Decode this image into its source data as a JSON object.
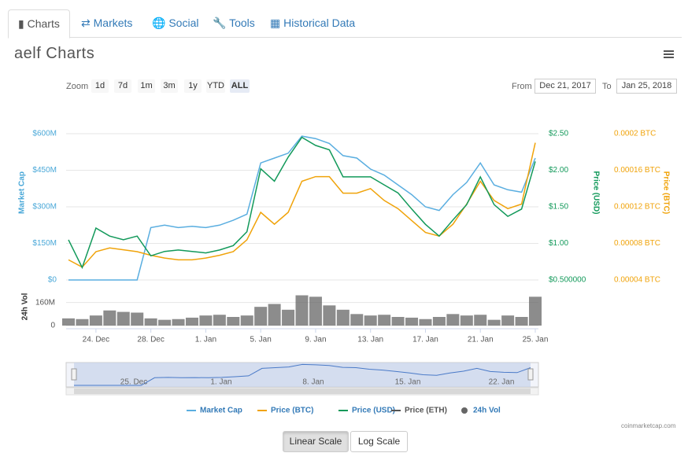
{
  "tabs": [
    "Charts",
    "Markets",
    "Social",
    "Tools",
    "Historical Data"
  ],
  "title": "aelf Charts",
  "range_selector": {
    "zoom_label": "Zoom",
    "buttons": [
      "1d",
      "7d",
      "1m",
      "3m",
      "1y",
      "YTD",
      "ALL"
    ],
    "active": "ALL",
    "from_label": "From",
    "from": "Dec 21, 2017",
    "to_label": "To",
    "to": "Jan 25, 2018"
  },
  "chart_data": {
    "type": "line",
    "categories": [
      null,
      null,
      "24. Dec",
      null,
      null,
      null,
      "28. Dec",
      null,
      null,
      null,
      "1. Jan",
      null,
      null,
      null,
      "5. Jan",
      null,
      null,
      null,
      "9. Jan",
      null,
      null,
      null,
      "13. Jan",
      null,
      null,
      null,
      "17. Jan",
      null,
      null,
      null,
      "21. Jan",
      null,
      null,
      null,
      "25. Jan"
    ],
    "series": [
      {
        "name": "Market Cap",
        "color": "#5aaee0",
        "axis": "y",
        "values": [
          0,
          0,
          0,
          0,
          0,
          0,
          215,
          225,
          215,
          220,
          215,
          225,
          245,
          270,
          480,
          500,
          520,
          590,
          580,
          560,
          510,
          500,
          455,
          430,
          390,
          350,
          300,
          285,
          350,
          400,
          480,
          390,
          370,
          360,
          500
        ]
      },
      {
        "name": "Price (BTC)",
        "color": "#f0a30a",
        "axis": "y3",
        "values": [
          6.2e-05,
          5.4e-05,
          7.1e-05,
          7.5e-05,
          7.3e-05,
          7.1e-05,
          6.7e-05,
          6.4e-05,
          6.2e-05,
          6.2e-05,
          6.4e-05,
          6.7e-05,
          7.1e-05,
          8.4e-05,
          0.000114,
          0.000101,
          0.000114,
          0.000148,
          0.000153,
          0.000153,
          0.000135,
          0.000135,
          0.00014,
          0.000127,
          0.000118,
          0.000105,
          9.2e-05,
          8.8e-05,
          0.000101,
          0.000123,
          0.000148,
          0.000127,
          0.000118,
          0.000123,
          0.00019
        ]
      },
      {
        "name": "Price (USD)",
        "color": "#12995a",
        "axis": "y2",
        "values": [
          1.05,
          0.67,
          1.21,
          1.1,
          1.05,
          1.1,
          0.83,
          0.89,
          0.91,
          0.89,
          0.87,
          0.91,
          0.97,
          1.16,
          2.02,
          1.85,
          2.18,
          2.45,
          2.34,
          2.28,
          1.91,
          1.91,
          1.91,
          1.8,
          1.69,
          1.47,
          1.26,
          1.1,
          1.32,
          1.53,
          1.91,
          1.53,
          1.37,
          1.47,
          2.12
        ]
      },
      {
        "name": "Price (ETH)",
        "color": "#555555",
        "hidden": true
      },
      {
        "name": "24h Vol",
        "color": "#666666",
        "axis": "y4",
        "kind": "column",
        "values": [
          50,
          45,
          70,
          105,
          95,
          90,
          50,
          40,
          45,
          55,
          70,
          75,
          60,
          70,
          130,
          150,
          110,
          210,
          200,
          140,
          110,
          80,
          70,
          75,
          60,
          55,
          45,
          60,
          80,
          70,
          75,
          40,
          70,
          60,
          200
        ]
      }
    ],
    "ylabel": "Market Cap",
    "ylim": [
      0,
      600
    ],
    "yticks": [
      {
        "value": 0,
        "label": "$0"
      },
      {
        "value": 150,
        "label": "$150M"
      },
      {
        "value": 300,
        "label": "$300M"
      },
      {
        "value": 450,
        "label": "$450M"
      },
      {
        "value": 600,
        "label": "$600M"
      }
    ],
    "y2label": "Price (USD)",
    "y2lim": [
      0.5,
      2.5
    ],
    "y2ticks": [
      {
        "value": 0.5,
        "label": "$0.500000"
      },
      {
        "value": 1,
        "label": "$1.00"
      },
      {
        "value": 1.5,
        "label": "$1.50"
      },
      {
        "value": 2,
        "label": "$2.00"
      },
      {
        "value": 2.5,
        "label": "$2.50"
      }
    ],
    "y3label": "Price (BTC)",
    "y3lim": [
      4e-05,
      0.0002
    ],
    "y3ticks": [
      {
        "value": 4e-05,
        "label": "0.00004 BTC"
      },
      {
        "value": 8e-05,
        "label": "0.00008 BTC"
      },
      {
        "value": 0.00012,
        "label": "0.00012 BTC"
      },
      {
        "value": 0.00016,
        "label": "0.00016 BTC"
      },
      {
        "value": 0.0002,
        "label": "0.0002 BTC"
      }
    ],
    "y4label": "24h Vol",
    "y4lim": [
      0,
      240
    ],
    "y4ticks": [
      0,
      {
        "value": 160,
        "label": "160M"
      }
    ],
    "grid": true,
    "legend": "bottom",
    "navigator_labels": [
      "25. Dec",
      "1. Jan",
      "8. Jan",
      "15. Jan",
      "22. Jan"
    ]
  },
  "credits": "coinmarketcap.com",
  "scale_buttons": [
    "Linear Scale",
    "Log Scale"
  ],
  "active_scale": "Linear Scale"
}
